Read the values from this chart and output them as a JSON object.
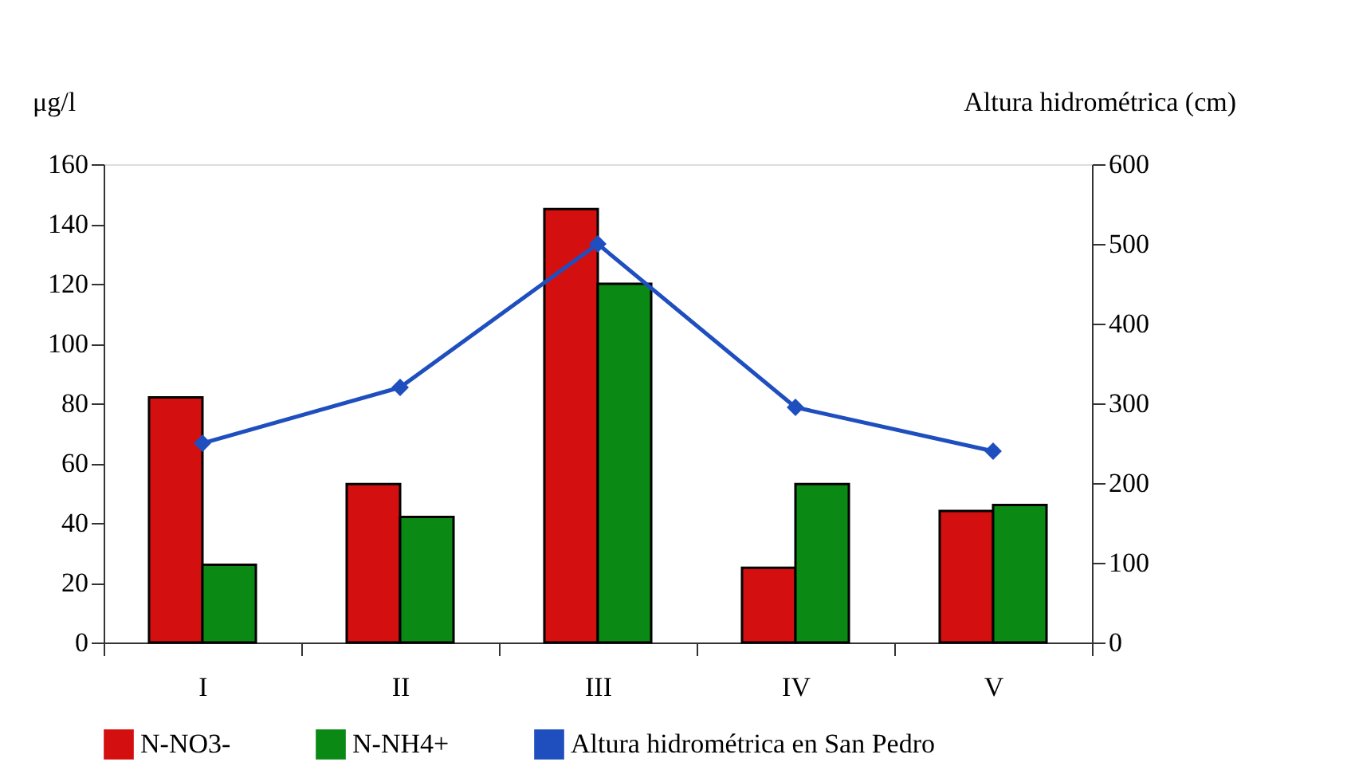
{
  "chart_data": {
    "type": "bar",
    "categories": [
      "I",
      "II",
      "III",
      "IV",
      "V"
    ],
    "ylabel": "μg/l",
    "y2label": "Altura hidrométrica (cm)",
    "ylim": [
      0,
      160
    ],
    "yticks": [
      0,
      20,
      40,
      60,
      80,
      100,
      120,
      140,
      160
    ],
    "y2lim": [
      0,
      600
    ],
    "y2ticks": [
      0,
      100,
      200,
      300,
      400,
      500,
      600
    ],
    "grid": false,
    "legend": "bottom",
    "series": [
      {
        "name": "N-NO3-",
        "color": "#d40f0f",
        "values": [
          82,
          53,
          145,
          25,
          44
        ]
      },
      {
        "name": "N-NH4+",
        "color": "#0a8a14",
        "values": [
          26,
          42,
          120,
          53,
          46
        ]
      },
      {
        "name": "Altura hidrométrica en San Pedro",
        "type": "line",
        "axis": "y2",
        "marker": "diamond",
        "color": "#1f4fbf",
        "values": [
          250,
          320,
          500,
          295,
          240
        ]
      }
    ]
  }
}
